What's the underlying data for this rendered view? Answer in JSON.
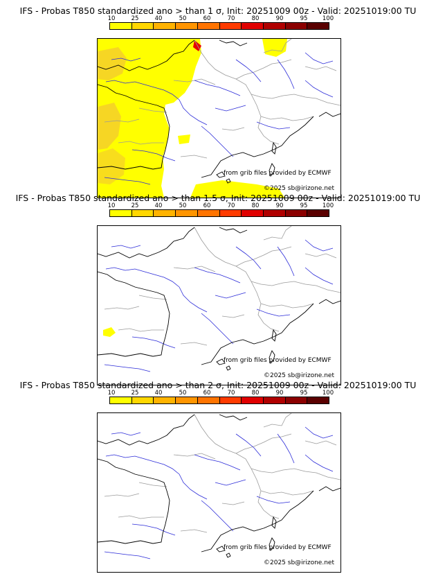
{
  "colors": {
    "legend": [
      "#ffff00",
      "#ffd700",
      "#ffb300",
      "#ff9500",
      "#ff7400",
      "#ff3b00",
      "#e00000",
      "#b00000",
      "#8b0000",
      "#5a0000"
    ],
    "probability_fill_low": "#ffff00",
    "probability_fill_mid": "#f5cf2a",
    "river": "#2a2ad8",
    "border": "#9a9a9a",
    "coast": "#000000"
  },
  "legend_ticks": [
    "10",
    "25",
    "40",
    "50",
    "60",
    "70",
    "80",
    "90",
    "95",
    "100"
  ],
  "panels": [
    {
      "title": "IFS - Probas T850  standardized ano > than 1 σ, Init: 20251009 00z - Valid: 20251019:00 TU",
      "credit_source": "from grib files provided by ECMWF",
      "credit_copyright": "©2025 sb@irizone.net",
      "coverage": "wide"
    },
    {
      "title": "IFS - Probas T850  standardized ano > than 1.5 σ, Init: 20251009 00z - Valid: 20251019:00 TU",
      "credit_source": "from grib files provided by ECMWF",
      "credit_copyright": "©2025 sb@irizone.net",
      "coverage": "tiny"
    },
    {
      "title": "IFS - Probas T850  standardized ano > than 2 σ, Init: 20251009 00z - Valid: 20251019:00 TU",
      "credit_source": "from grib files provided by ECMWF",
      "credit_copyright": "©2025 sb@irizone.net",
      "coverage": "none"
    }
  ]
}
